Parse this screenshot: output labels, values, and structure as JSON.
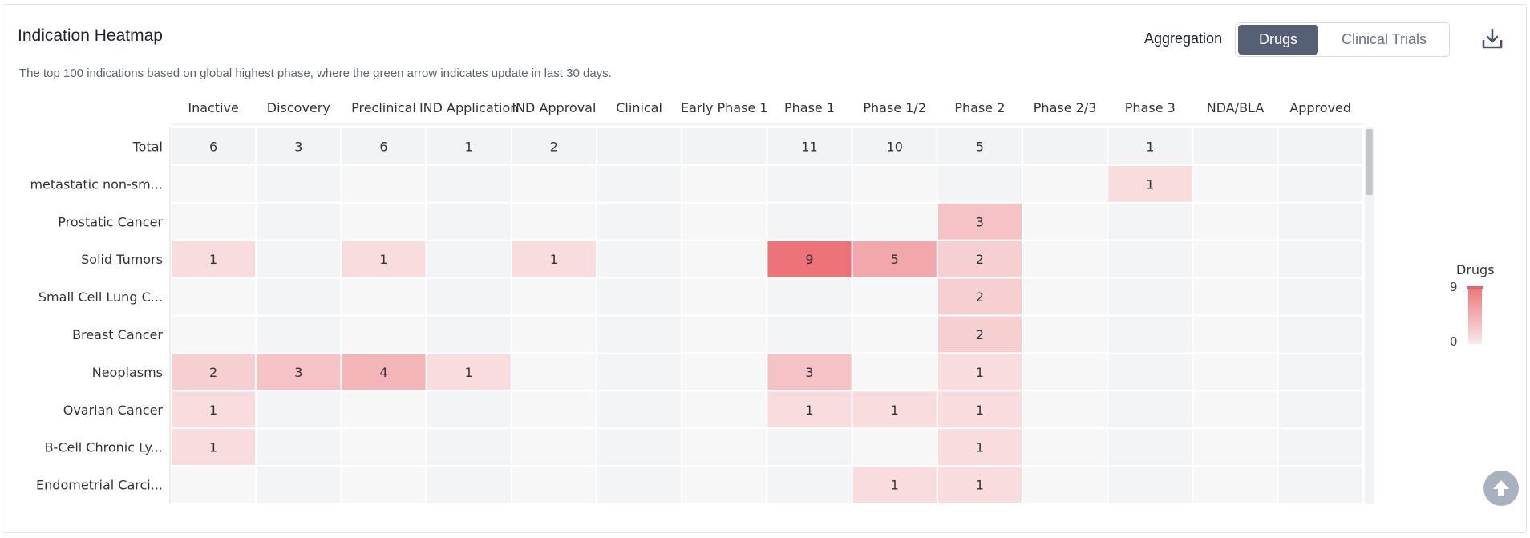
{
  "header": {
    "title": "Indication Heatmap",
    "subtitle": "The top 100 indications based on global highest phase, where the green arrow indicates update in last 30 days.",
    "aggregation_label": "Aggregation",
    "toggle": {
      "active": "Drugs",
      "other": "Clinical Trials"
    },
    "download_icon": "download-icon"
  },
  "legend": {
    "title": "Drugs",
    "max": "9",
    "min": "0",
    "color_high": "#ec7378",
    "color_low": "#f9e9eb"
  },
  "scroll_top_icon": "arrow-up-icon",
  "chart_data": {
    "type": "heatmap",
    "x_categories": [
      "Inactive",
      "Discovery",
      "Preclinical",
      "IND Application",
      "IND Approval",
      "Clinical",
      "Early Phase 1",
      "Phase 1",
      "Phase 1/2",
      "Phase 2",
      "Phase 2/3",
      "Phase 3",
      "NDA/BLA",
      "Approved"
    ],
    "total_label": "Total",
    "totals": [
      6,
      3,
      6,
      1,
      2,
      null,
      null,
      11,
      10,
      5,
      null,
      1,
      null,
      null
    ],
    "y_categories": [
      "metastatic non-sm...",
      "Prostatic Cancer",
      "Solid Tumors",
      "Small Cell Lung C...",
      "Breast Cancer",
      "Neoplasms",
      "Ovarian Cancer",
      "B-Cell Chronic Ly...",
      "Endometrial Carci..."
    ],
    "values": [
      [
        null,
        null,
        null,
        null,
        null,
        null,
        null,
        null,
        null,
        null,
        null,
        1,
        null,
        null
      ],
      [
        null,
        null,
        null,
        null,
        null,
        null,
        null,
        null,
        null,
        3,
        null,
        null,
        null,
        null
      ],
      [
        1,
        null,
        1,
        null,
        1,
        null,
        null,
        9,
        5,
        2,
        null,
        null,
        null,
        null
      ],
      [
        null,
        null,
        null,
        null,
        null,
        null,
        null,
        null,
        null,
        2,
        null,
        null,
        null,
        null
      ],
      [
        null,
        null,
        null,
        null,
        null,
        null,
        null,
        null,
        null,
        2,
        null,
        null,
        null,
        null
      ],
      [
        2,
        3,
        4,
        1,
        null,
        null,
        null,
        3,
        null,
        1,
        null,
        null,
        null,
        null
      ],
      [
        1,
        null,
        null,
        null,
        null,
        null,
        null,
        1,
        1,
        1,
        null,
        null,
        null,
        null
      ],
      [
        1,
        null,
        null,
        null,
        null,
        null,
        null,
        null,
        null,
        1,
        null,
        null,
        null,
        null
      ],
      [
        null,
        null,
        null,
        null,
        null,
        null,
        null,
        null,
        1,
        1,
        null,
        null,
        null,
        null
      ]
    ],
    "color_scale": {
      "min": 0,
      "max": 9,
      "low": "#f9e9eb",
      "high": "#ec7378"
    },
    "empty_colors": [
      "#f7f7f8",
      "#f3f4f6"
    ],
    "total_row_color": "#f2f3f5"
  }
}
